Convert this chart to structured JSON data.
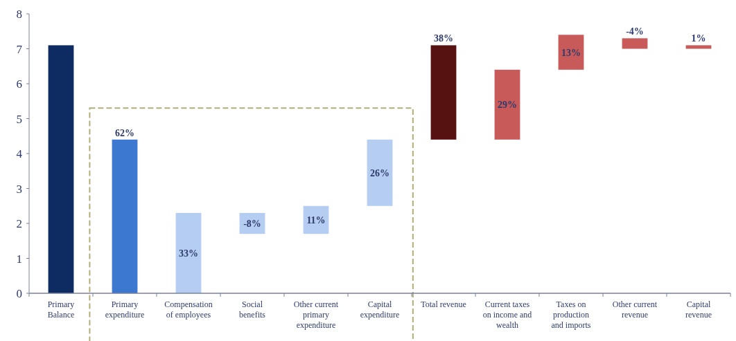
{
  "chart_data": {
    "type": "bar",
    "categories": [
      "Primary Balance",
      "Primary expenditure",
      "Compensation of employees",
      "Social benefits",
      "Other current primary expenditure",
      "Capital expenditure",
      "Total revenue",
      "Current taxes on income and wealth",
      "Taxes on production and imports",
      "Other current revenue",
      "Capital revenue"
    ],
    "values": [
      7.1,
      4.4,
      2.3,
      0.6,
      0.8,
      1.9,
      2.7,
      2.0,
      1.0,
      0.3,
      0.1
    ],
    "base": [
      0,
      0,
      0,
      1.7,
      1.7,
      2.5,
      4.4,
      4.4,
      6.4,
      7.0,
      7.0
    ],
    "colors": [
      "#0e2c62",
      "#3c78d0",
      "#b4cdf0",
      "#b4cdf0",
      "#b4cdf0",
      "#b4cdf0",
      "#561111",
      "#c85a5a",
      "#c85a5a",
      "#c85a5a",
      "#c85a5a"
    ],
    "annotations": [
      "62%",
      "33%",
      "-8%",
      "11%",
      "26%",
      "38%",
      "29%",
      "13%",
      "-4%",
      "1%"
    ],
    "ylim": [
      0,
      8
    ],
    "yticks": [
      0,
      1,
      2,
      3,
      4,
      5,
      6,
      7,
      8
    ],
    "grid": false
  }
}
